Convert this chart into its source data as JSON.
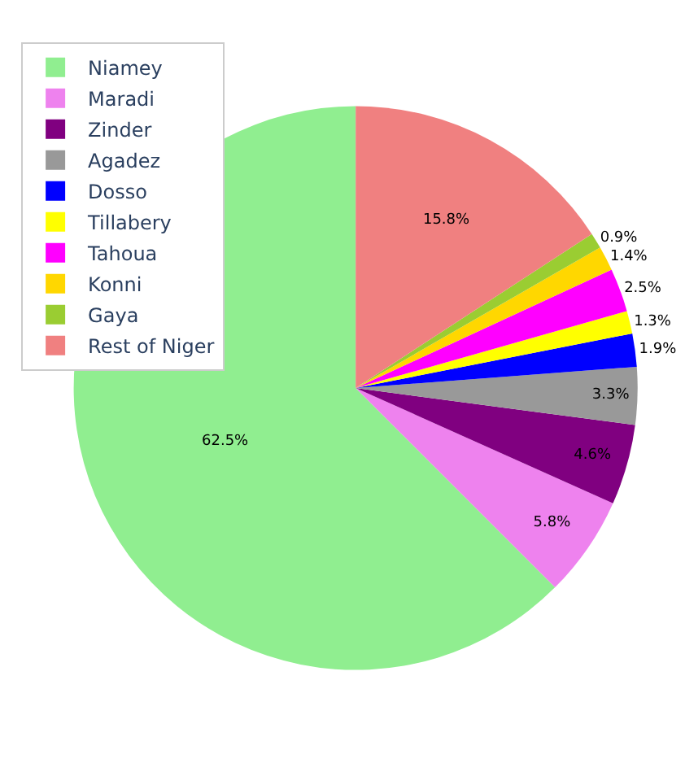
{
  "chart_data": {
    "type": "pie",
    "categories": [
      "Niamey",
      "Maradi",
      "Zinder",
      "Agadez",
      "Dosso",
      "Tillabery",
      "Tahoua",
      "Konni",
      "Gaya",
      "Rest of Niger"
    ],
    "values": [
      62.5,
      5.8,
      4.6,
      3.3,
      1.9,
      1.3,
      2.5,
      1.4,
      0.9,
      15.8
    ],
    "colors": [
      "#90ee90",
      "#ee82ee",
      "#800080",
      "#999999",
      "#0000ff",
      "#ffff00",
      "#ff00ff",
      "#ffd700",
      "#9acd32",
      "#f08080"
    ],
    "value_labels": [
      "62.5%",
      "5.8%",
      "4.6%",
      "3.3%",
      "1.9%",
      "1.3%",
      "2.5%",
      "1.4%",
      "0.9%",
      "15.8%"
    ],
    "legend": "top left"
  }
}
